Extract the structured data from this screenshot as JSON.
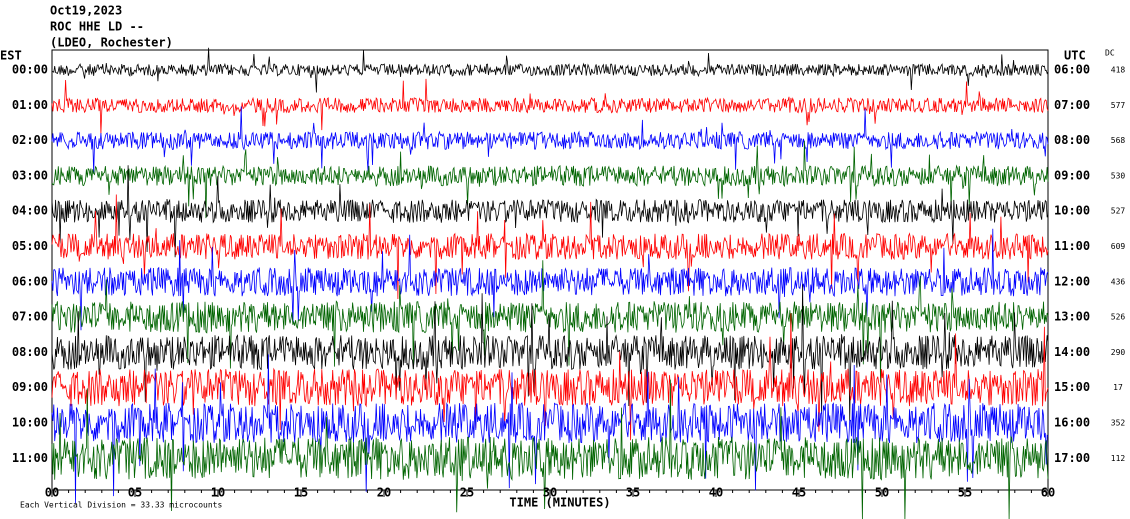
{
  "header": {
    "date": "Oct19,2023",
    "station": "ROC HHE LD --",
    "network": "(LDEO, Rochester)"
  },
  "chart_data": {
    "type": "helicorder",
    "left_axis_label": "EST",
    "right_axis_label": "UTC",
    "dc_label": "DC",
    "rows": [
      {
        "est": "00:00",
        "utc": "06:00",
        "dc": 418,
        "color": "#000000"
      },
      {
        "est": "01:00",
        "utc": "07:00",
        "dc": 577,
        "color": "#ff0000"
      },
      {
        "est": "02:00",
        "utc": "08:00",
        "dc": 568,
        "color": "#0000ff"
      },
      {
        "est": "03:00",
        "utc": "09:00",
        "dc": 530,
        "color": "#006400"
      },
      {
        "est": "04:00",
        "utc": "10:00",
        "dc": 527,
        "color": "#000000"
      },
      {
        "est": "05:00",
        "utc": "11:00",
        "dc": 609,
        "color": "#ff0000"
      },
      {
        "est": "06:00",
        "utc": "12:00",
        "dc": 436,
        "color": "#0000ff"
      },
      {
        "est": "07:00",
        "utc": "13:00",
        "dc": 526,
        "color": "#006400"
      },
      {
        "est": "08:00",
        "utc": "14:00",
        "dc": 290,
        "color": "#000000"
      },
      {
        "est": "09:00",
        "utc": "15:00",
        "dc": 17,
        "color": "#ff0000"
      },
      {
        "est": "10:00",
        "utc": "16:00",
        "dc": 352,
        "color": "#0000ff"
      },
      {
        "est": "11:00",
        "utc": "17:00",
        "dc": 112,
        "color": "#006400"
      }
    ],
    "xlim": [
      0,
      60
    ],
    "xticks": [
      {
        "value": 0,
        "label": "00"
      },
      {
        "value": 5,
        "label": "05"
      },
      10,
      15,
      20,
      25,
      30,
      35,
      40,
      45,
      50,
      55,
      60
    ],
    "xlabel": "TIME (MINUTES)",
    "footnote": "Each Vertical Division = 33.33 microcounts"
  }
}
